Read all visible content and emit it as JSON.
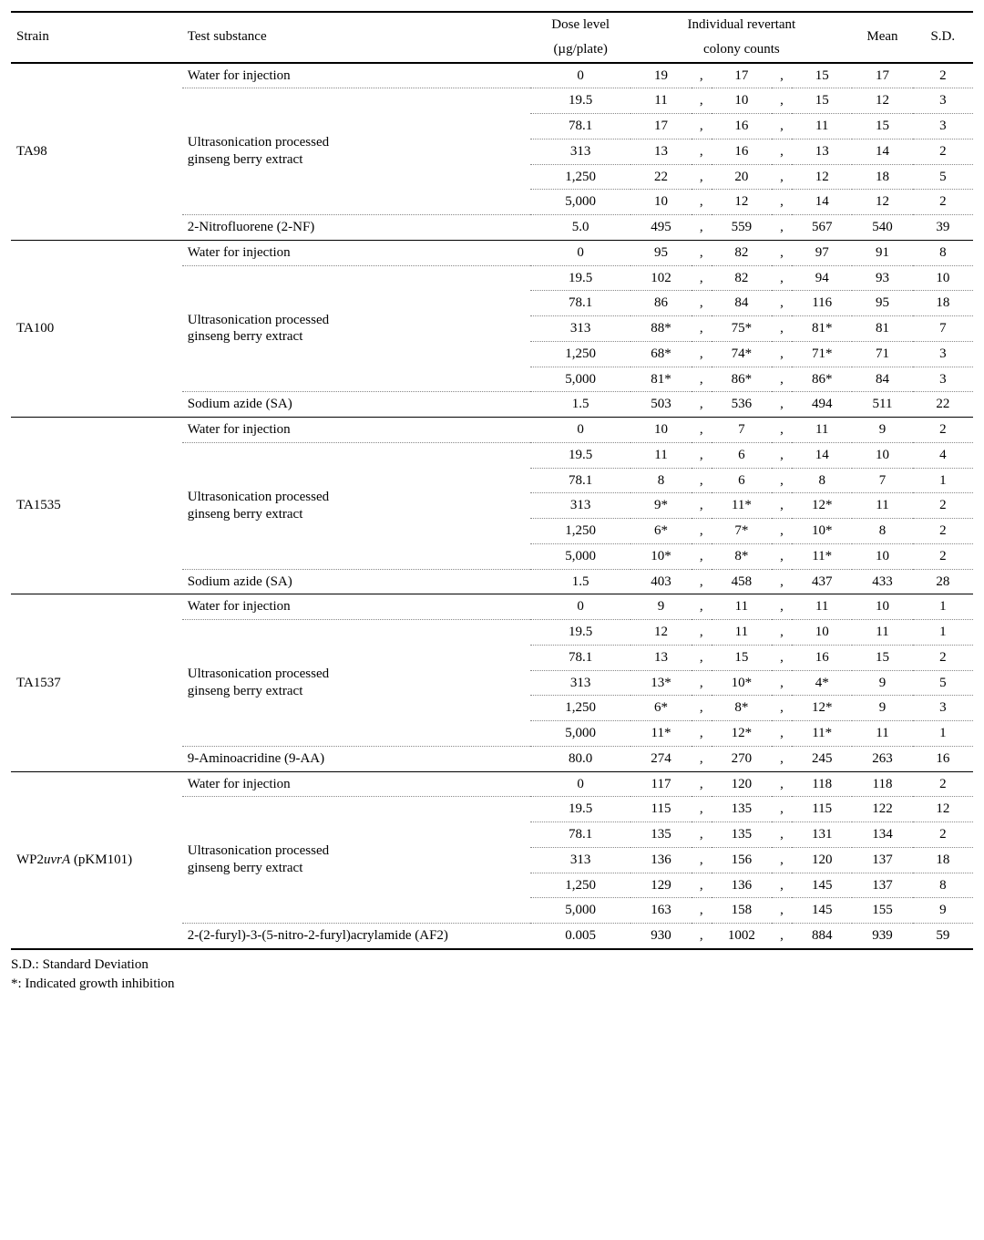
{
  "header": {
    "strain": "Strain",
    "substance": "Test substance",
    "dose_line1": "Dose level",
    "dose_line2": "(µg/plate)",
    "rev_line1": "Individual revertant",
    "rev_line2": "colony counts",
    "mean": "Mean",
    "sd": "S.D."
  },
  "labels": {
    "water": "Water for injection",
    "upge_line1": "Ultrasonication processed",
    "upge_line2": "ginseng berry extract"
  },
  "strains": [
    {
      "name": "TA98",
      "positive": {
        "name": "2-Nitrofluorene (2-NF)",
        "dose": "5.0",
        "v": [
          "495",
          "559",
          "567"
        ],
        "mean": "540",
        "sd": "39"
      },
      "water": {
        "dose": "0",
        "v": [
          "19",
          "17",
          "15"
        ],
        "mean": "17",
        "sd": "2"
      },
      "upge": [
        {
          "dose": "19.5",
          "v": [
            "11",
            "10",
            "15"
          ],
          "mean": "12",
          "sd": "3"
        },
        {
          "dose": "78.1",
          "v": [
            "17",
            "16",
            "11"
          ],
          "mean": "15",
          "sd": "3"
        },
        {
          "dose": "313",
          "v": [
            "13",
            "16",
            "13"
          ],
          "mean": "14",
          "sd": "2"
        },
        {
          "dose": "1,250",
          "v": [
            "22",
            "20",
            "12"
          ],
          "mean": "18",
          "sd": "5"
        },
        {
          "dose": "5,000",
          "v": [
            "10",
            "12",
            "14"
          ],
          "mean": "12",
          "sd": "2"
        }
      ]
    },
    {
      "name": "TA100",
      "positive": {
        "name": "Sodium azide (SA)",
        "dose": "1.5",
        "v": [
          "503",
          "536",
          "494"
        ],
        "mean": "511",
        "sd": "22"
      },
      "water": {
        "dose": "0",
        "v": [
          "95",
          "82",
          "97"
        ],
        "mean": "91",
        "sd": "8"
      },
      "upge": [
        {
          "dose": "19.5",
          "v": [
            "102",
            "82",
            "94"
          ],
          "mean": "93",
          "sd": "10"
        },
        {
          "dose": "78.1",
          "v": [
            "86",
            "84",
            "116"
          ],
          "mean": "95",
          "sd": "18"
        },
        {
          "dose": "313",
          "v": [
            "88*",
            "75*",
            "81*"
          ],
          "mean": "81",
          "sd": "7"
        },
        {
          "dose": "1,250",
          "v": [
            "68*",
            "74*",
            "71*"
          ],
          "mean": "71",
          "sd": "3"
        },
        {
          "dose": "5,000",
          "v": [
            "81*",
            "86*",
            "86*"
          ],
          "mean": "84",
          "sd": "3"
        }
      ]
    },
    {
      "name": "TA1535",
      "positive": {
        "name": "Sodium azide (SA)",
        "dose": "1.5",
        "v": [
          "403",
          "458",
          "437"
        ],
        "mean": "433",
        "sd": "28"
      },
      "water": {
        "dose": "0",
        "v": [
          "10",
          "7",
          "11"
        ],
        "mean": "9",
        "sd": "2"
      },
      "upge": [
        {
          "dose": "19.5",
          "v": [
            "11",
            "6",
            "14"
          ],
          "mean": "10",
          "sd": "4"
        },
        {
          "dose": "78.1",
          "v": [
            "8",
            "6",
            "8"
          ],
          "mean": "7",
          "sd": "1"
        },
        {
          "dose": "313",
          "v": [
            "9*",
            "11*",
            "12*"
          ],
          "mean": "11",
          "sd": "2"
        },
        {
          "dose": "1,250",
          "v": [
            "6*",
            "7*",
            "10*"
          ],
          "mean": "8",
          "sd": "2"
        },
        {
          "dose": "5,000",
          "v": [
            "10*",
            "8*",
            "11*"
          ],
          "mean": "10",
          "sd": "2"
        }
      ]
    },
    {
      "name": "TA1537",
      "positive": {
        "name": "9-Aminoacridine (9-AA)",
        "dose": "80.0",
        "v": [
          "274",
          "270",
          "245"
        ],
        "mean": "263",
        "sd": "16"
      },
      "water": {
        "dose": "0",
        "v": [
          "9",
          "11",
          "11"
        ],
        "mean": "10",
        "sd": "1"
      },
      "upge": [
        {
          "dose": "19.5",
          "v": [
            "12",
            "11",
            "10"
          ],
          "mean": "11",
          "sd": "1"
        },
        {
          "dose": "78.1",
          "v": [
            "13",
            "15",
            "16"
          ],
          "mean": "15",
          "sd": "2"
        },
        {
          "dose": "313",
          "v": [
            "13*",
            "10*",
            "4*"
          ],
          "mean": "9",
          "sd": "5"
        },
        {
          "dose": "1,250",
          "v": [
            "6*",
            "8*",
            "12*"
          ],
          "mean": "9",
          "sd": "3"
        },
        {
          "dose": "5,000",
          "v": [
            "11*",
            "12*",
            "11*"
          ],
          "mean": "11",
          "sd": "1"
        }
      ]
    },
    {
      "name_parts": [
        "WP2",
        "uvrA",
        " (pKM101)"
      ],
      "positive": {
        "name": "2-(2-furyl)-3-(5-nitro-2-furyl)acrylamide (AF2)",
        "dose": "0.005",
        "v": [
          "930",
          "1002",
          "884"
        ],
        "mean": "939",
        "sd": "59"
      },
      "water": {
        "dose": "0",
        "v": [
          "117",
          "120",
          "118"
        ],
        "mean": "118",
        "sd": "2"
      },
      "upge": [
        {
          "dose": "19.5",
          "v": [
            "115",
            "135",
            "115"
          ],
          "mean": "122",
          "sd": "12"
        },
        {
          "dose": "78.1",
          "v": [
            "135",
            "135",
            "131"
          ],
          "mean": "134",
          "sd": "2"
        },
        {
          "dose": "313",
          "v": [
            "136",
            "156",
            "120"
          ],
          "mean": "137",
          "sd": "18"
        },
        {
          "dose": "1,250",
          "v": [
            "129",
            "136",
            "145"
          ],
          "mean": "137",
          "sd": "8"
        },
        {
          "dose": "5,000",
          "v": [
            "163",
            "158",
            "145"
          ],
          "mean": "155",
          "sd": "9"
        }
      ]
    }
  ],
  "footnotes": {
    "sd": "S.D.: Standard Deviation",
    "star": "*: Indicated growth inhibition"
  }
}
